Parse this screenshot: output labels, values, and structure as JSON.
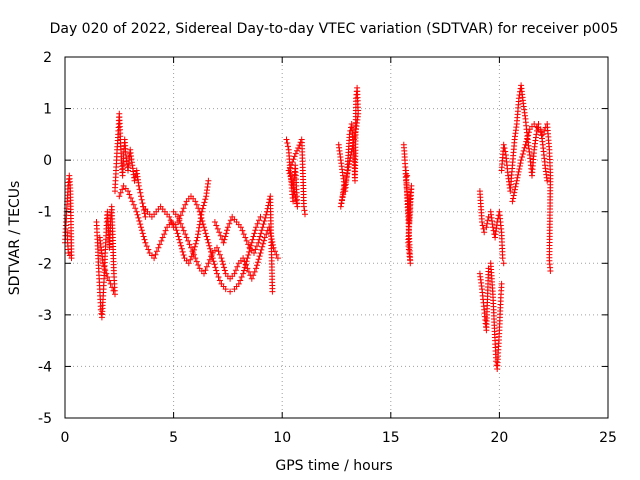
{
  "chart_data": {
    "type": "scatter",
    "title": "Day 020 of 2022, Sidereal Day-to-day VTEC variation (SDTVAR) for receiver p005",
    "xlabel": "GPS time / hours",
    "ylabel": "SDTVAR / TECUs",
    "xlim": [
      0,
      25
    ],
    "ylim": [
      -5,
      2
    ],
    "xticks": [
      0,
      5,
      10,
      15,
      20,
      25
    ],
    "yticks": [
      -5,
      -4,
      -3,
      -2,
      -1,
      0,
      1,
      2
    ],
    "grid": true,
    "marker": "+",
    "color": "#ff0000",
    "series": [
      {
        "name": "SDTVAR",
        "segments": [
          [
            [
              0.0,
              -1.6
            ],
            [
              0.05,
              -1.2
            ],
            [
              0.1,
              -0.8
            ],
            [
              0.15,
              -0.5
            ],
            [
              0.2,
              -0.3
            ],
            [
              0.25,
              -0.6
            ],
            [
              0.3,
              -1.9
            ],
            [
              0.15,
              -1.8
            ],
            [
              0.1,
              -1.4
            ]
          ],
          [
            [
              1.45,
              -1.2
            ],
            [
              1.5,
              -1.6
            ],
            [
              1.55,
              -2.1
            ],
            [
              1.6,
              -2.5
            ],
            [
              1.65,
              -2.9
            ],
            [
              1.7,
              -3.05
            ],
            [
              1.75,
              -2.7
            ],
            [
              1.8,
              -2.3
            ],
            [
              1.85,
              -1.8
            ],
            [
              1.9,
              -1.4
            ],
            [
              1.95,
              -1.0
            ],
            [
              2.0,
              -1.3
            ],
            [
              2.05,
              -1.7
            ],
            [
              2.1,
              -1.2
            ],
            [
              2.15,
              -0.9
            ],
            [
              2.2,
              -1.5
            ],
            [
              2.25,
              -2.2
            ],
            [
              2.3,
              -2.6
            ],
            [
              2.1,
              -2.4
            ],
            [
              1.9,
              -2.2
            ],
            [
              1.75,
              -2.0
            ],
            [
              1.6,
              -1.5
            ]
          ],
          [
            [
              2.3,
              -0.6
            ],
            [
              2.35,
              -0.2
            ],
            [
              2.4,
              0.2
            ],
            [
              2.45,
              0.5
            ],
            [
              2.5,
              0.9
            ],
            [
              2.55,
              0.4
            ],
            [
              2.6,
              0.0
            ],
            [
              2.65,
              -0.3
            ],
            [
              2.7,
              0.1
            ],
            [
              2.75,
              0.4
            ],
            [
              2.8,
              0.1
            ],
            [
              2.9,
              -0.2
            ],
            [
              3.0,
              0.2
            ],
            [
              3.1,
              -0.1
            ],
            [
              3.2,
              -0.4
            ],
            [
              3.3,
              -0.2
            ],
            [
              3.4,
              -0.5
            ],
            [
              3.5,
              -0.7
            ],
            [
              3.6,
              -0.9
            ],
            [
              3.7,
              -1.1
            ]
          ],
          [
            [
              2.5,
              -0.7
            ],
            [
              2.7,
              -0.5
            ],
            [
              2.9,
              -0.6
            ],
            [
              3.1,
              -0.8
            ],
            [
              3.3,
              -1.0
            ],
            [
              3.5,
              -1.3
            ],
            [
              3.7,
              -1.6
            ],
            [
              3.9,
              -1.8
            ],
            [
              4.1,
              -1.9
            ],
            [
              4.3,
              -1.7
            ],
            [
              4.5,
              -1.5
            ],
            [
              4.7,
              -1.3
            ],
            [
              4.9,
              -1.2
            ],
            [
              5.1,
              -1.3
            ],
            [
              5.3,
              -1.6
            ],
            [
              5.5,
              -1.9
            ],
            [
              5.7,
              -2.0
            ],
            [
              5.9,
              -1.8
            ],
            [
              6.1,
              -1.5
            ],
            [
              6.3,
              -1.0
            ],
            [
              6.5,
              -0.7
            ],
            [
              6.6,
              -0.4
            ]
          ],
          [
            [
              3.6,
              -0.9
            ],
            [
              3.8,
              -1.0
            ],
            [
              4.0,
              -1.1
            ],
            [
              4.2,
              -1.0
            ],
            [
              4.4,
              -0.9
            ],
            [
              4.6,
              -1.0
            ],
            [
              4.8,
              -1.1
            ],
            [
              5.0,
              -1.3
            ],
            [
              5.2,
              -1.2
            ],
            [
              5.4,
              -1.0
            ],
            [
              5.6,
              -0.8
            ],
            [
              5.8,
              -0.7
            ],
            [
              6.0,
              -0.8
            ],
            [
              6.2,
              -1.0
            ],
            [
              6.4,
              -1.3
            ],
            [
              6.6,
              -1.6
            ],
            [
              6.8,
              -1.9
            ],
            [
              7.0,
              -2.2
            ],
            [
              7.2,
              -2.4
            ],
            [
              7.4,
              -2.5
            ],
            [
              7.6,
              -2.55
            ],
            [
              7.8,
              -2.5
            ],
            [
              8.0,
              -2.4
            ],
            [
              8.2,
              -2.2
            ],
            [
              8.4,
              -1.9
            ],
            [
              8.6,
              -1.6
            ],
            [
              8.8,
              -1.3
            ],
            [
              9.0,
              -1.1
            ]
          ],
          [
            [
              5.0,
              -1.0
            ],
            [
              5.2,
              -1.1
            ],
            [
              5.4,
              -1.3
            ],
            [
              5.6,
              -1.5
            ],
            [
              5.8,
              -1.7
            ],
            [
              6.0,
              -1.9
            ],
            [
              6.2,
              -2.1
            ],
            [
              6.4,
              -2.2
            ],
            [
              6.6,
              -2.0
            ],
            [
              6.8,
              -1.8
            ],
            [
              7.0,
              -1.7
            ],
            [
              7.2,
              -1.9
            ],
            [
              7.4,
              -2.2
            ],
            [
              7.6,
              -2.3
            ],
            [
              7.8,
              -2.2
            ],
            [
              8.0,
              -2.0
            ],
            [
              8.2,
              -1.9
            ],
            [
              8.4,
              -2.1
            ],
            [
              8.6,
              -2.3
            ],
            [
              8.8,
              -2.1
            ],
            [
              9.0,
              -1.8
            ],
            [
              9.2,
              -1.5
            ],
            [
              9.4,
              -1.3
            ],
            [
              9.6,
              -1.7
            ],
            [
              9.8,
              -1.9
            ]
          ],
          [
            [
              6.9,
              -1.2
            ],
            [
              7.1,
              -1.4
            ],
            [
              7.3,
              -1.6
            ],
            [
              7.5,
              -1.3
            ],
            [
              7.7,
              -1.1
            ],
            [
              7.9,
              -1.2
            ],
            [
              8.1,
              -1.3
            ],
            [
              8.3,
              -1.5
            ],
            [
              8.5,
              -1.7
            ],
            [
              8.7,
              -1.8
            ],
            [
              8.9,
              -1.6
            ],
            [
              9.1,
              -1.3
            ],
            [
              9.3,
              -1.0
            ],
            [
              9.45,
              -0.7
            ],
            [
              9.55,
              -2.55
            ]
          ],
          [
            [
              10.2,
              0.4
            ],
            [
              10.3,
              0.2
            ],
            [
              10.35,
              -0.1
            ],
            [
              10.4,
              -0.3
            ],
            [
              10.45,
              -0.6
            ],
            [
              10.5,
              -0.8
            ],
            [
              10.55,
              -0.4
            ],
            [
              10.6,
              -0.1
            ],
            [
              10.65,
              -0.5
            ],
            [
              10.7,
              -0.9
            ],
            [
              10.5,
              -0.5
            ],
            [
              10.3,
              -0.2
            ],
            [
              10.9,
              0.4
            ],
            [
              10.95,
              -0.2
            ],
            [
              11.0,
              -0.9
            ],
            [
              11.05,
              -1.05
            ]
          ],
          [
            [
              12.6,
              0.3
            ],
            [
              12.7,
              0.0
            ],
            [
              12.8,
              -0.3
            ],
            [
              12.9,
              -0.6
            ],
            [
              13.0,
              -0.2
            ],
            [
              13.1,
              0.5
            ],
            [
              13.2,
              0.7
            ],
            [
              13.3,
              0.1
            ],
            [
              13.35,
              -0.4
            ],
            [
              13.4,
              1.2
            ],
            [
              13.45,
              1.4
            ],
            [
              13.5,
              0.9
            ],
            [
              13.4,
              0.6
            ],
            [
              13.3,
              0.4
            ],
            [
              12.7,
              -0.9
            ],
            [
              12.85,
              -0.5
            ]
          ],
          [
            [
              15.6,
              0.3
            ],
            [
              15.65,
              0.0
            ],
            [
              15.7,
              -0.4
            ],
            [
              15.75,
              -0.6
            ],
            [
              15.8,
              -0.9
            ],
            [
              15.85,
              -1.2
            ],
            [
              15.9,
              -0.7
            ],
            [
              15.95,
              -0.5
            ],
            [
              15.8,
              -1.6
            ],
            [
              15.85,
              -1.8
            ],
            [
              15.9,
              -2.0
            ],
            [
              15.7,
              -0.2
            ],
            [
              15.75,
              -0.3
            ]
          ],
          [
            [
              19.1,
              -0.6
            ],
            [
              19.2,
              -1.2
            ],
            [
              19.3,
              -1.4
            ],
            [
              19.4,
              -1.3
            ],
            [
              19.5,
              -1.1
            ],
            [
              19.6,
              -1.0
            ],
            [
              19.7,
              -1.3
            ],
            [
              19.8,
              -1.5
            ],
            [
              19.9,
              -1.2
            ],
            [
              20.0,
              -1.0
            ],
            [
              20.1,
              -1.4
            ],
            [
              20.15,
              -1.9
            ],
            [
              20.2,
              -2.0
            ]
          ],
          [
            [
              19.1,
              -2.2
            ],
            [
              19.2,
              -2.5
            ],
            [
              19.3,
              -2.9
            ],
            [
              19.4,
              -3.3
            ],
            [
              19.5,
              -2.1
            ],
            [
              19.6,
              -2.0
            ],
            [
              19.7,
              -2.6
            ],
            [
              19.8,
              -3.5
            ],
            [
              19.85,
              -3.9
            ],
            [
              19.9,
              -4.05
            ],
            [
              20.0,
              -3.3
            ],
            [
              20.05,
              -2.8
            ],
            [
              20.1,
              -2.4
            ]
          ],
          [
            [
              20.1,
              -0.2
            ],
            [
              20.2,
              0.3
            ],
            [
              20.3,
              0.1
            ],
            [
              20.4,
              -0.3
            ],
            [
              20.5,
              -0.6
            ],
            [
              20.6,
              -0.1
            ],
            [
              20.7,
              0.4
            ],
            [
              20.8,
              0.7
            ],
            [
              20.9,
              1.2
            ],
            [
              21.0,
              1.45
            ],
            [
              21.1,
              1.1
            ],
            [
              21.2,
              0.8
            ],
            [
              21.3,
              0.4
            ],
            [
              21.4,
              0.1
            ],
            [
              21.5,
              -0.3
            ],
            [
              21.6,
              0.2
            ],
            [
              21.7,
              0.5
            ],
            [
              21.8,
              0.7
            ],
            [
              21.9,
              0.6
            ],
            [
              22.0,
              0.3
            ],
            [
              22.1,
              -0.1
            ],
            [
              22.2,
              -0.4
            ]
          ],
          [
            [
              20.6,
              -0.8
            ],
            [
              20.8,
              -0.4
            ],
            [
              21.0,
              0.0
            ],
            [
              21.2,
              0.3
            ],
            [
              21.4,
              0.6
            ],
            [
              21.6,
              0.7
            ],
            [
              21.8,
              0.6
            ],
            [
              22.0,
              0.5
            ],
            [
              22.2,
              0.7
            ],
            [
              22.3,
              0.2
            ],
            [
              22.35,
              -0.3
            ],
            [
              22.3,
              -1.95
            ],
            [
              22.35,
              -2.15
            ]
          ]
        ]
      }
    ]
  }
}
